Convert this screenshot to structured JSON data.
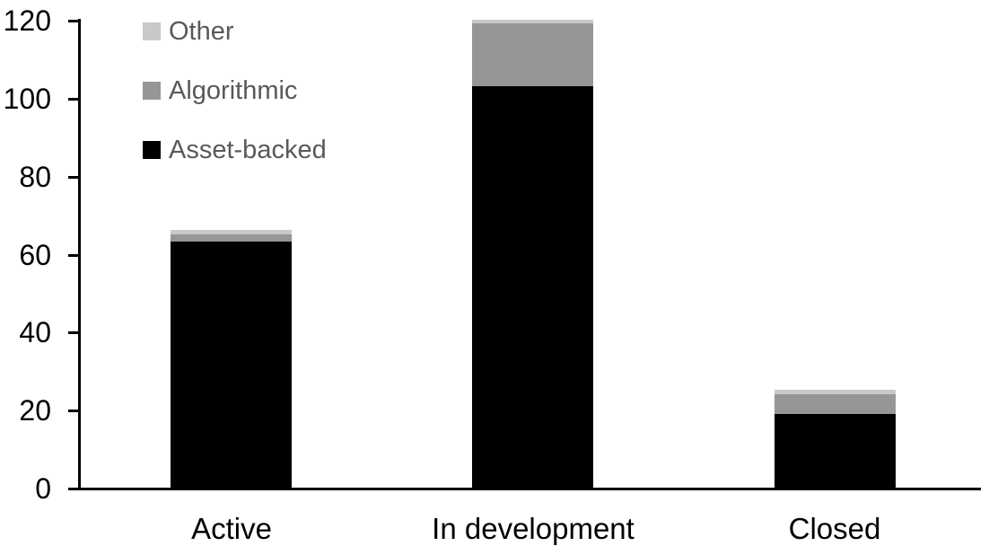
{
  "chart_data": {
    "type": "bar",
    "subtype": "stacked-column",
    "title": "",
    "xlabel": "",
    "ylabel": "",
    "categories": [
      "Active",
      "In development",
      "Closed"
    ],
    "series": [
      {
        "name": "Asset-backed",
        "color": "#000000",
        "values": [
          63,
          103,
          19
        ]
      },
      {
        "name": "Algorithmic",
        "color": "#969696",
        "values": [
          2,
          16,
          5
        ]
      },
      {
        "name": "Other",
        "color": "#c9c9c9",
        "values": [
          1,
          1,
          1
        ]
      }
    ],
    "stack_totals": [
      66,
      120,
      25
    ],
    "ylim": [
      0,
      120
    ],
    "yticks": [
      0,
      20,
      40,
      60,
      80,
      100,
      120
    ],
    "grid": false,
    "legend_position": "top-left",
    "legend_order": [
      "Other",
      "Algorithmic",
      "Asset-backed"
    ]
  },
  "legend": {
    "items": [
      {
        "label": "Other",
        "color": "#c9c9c9"
      },
      {
        "label": "Algorithmic",
        "color": "#969696"
      },
      {
        "label": "Asset-backed",
        "color": "#000000"
      }
    ]
  },
  "colors": {
    "axis": "#000000",
    "tick_label": "#000000",
    "category_label": "#000000",
    "legend_text": "#595959",
    "background": "#ffffff"
  }
}
